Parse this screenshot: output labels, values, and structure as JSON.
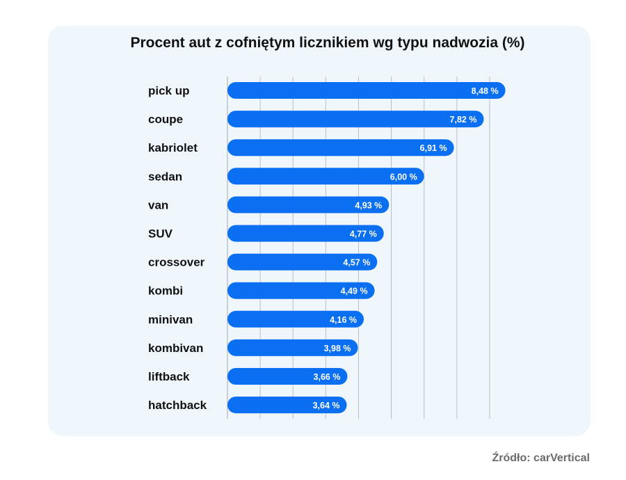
{
  "chart_data": {
    "type": "bar",
    "orientation": "horizontal",
    "title": "Procent aut z cofniętym licznikiem wg typu nadwozia (%)",
    "categories": [
      "pick up",
      "coupe",
      "kabriolet",
      "sedan",
      "van",
      "SUV",
      "crossover",
      "kombi",
      "minivan",
      "kombivan",
      "liftback",
      "hatchback"
    ],
    "values": [
      8.48,
      7.82,
      6.91,
      6.0,
      4.93,
      4.77,
      4.57,
      4.49,
      4.16,
      3.98,
      3.66,
      3.64
    ],
    "value_labels": [
      "8,48 %",
      "7,82 %",
      "6,91 %",
      "6,00 %",
      "4,93 %",
      "4,77 %",
      "4,57 %",
      "4,49 %",
      "4,16 %",
      "3,98 %",
      "3,66 %",
      "3,64 %"
    ],
    "xlim": [
      0,
      9
    ],
    "grid": true,
    "bar_color": "#0a6ff0",
    "grid_color": "#b7bfc8"
  },
  "source_text": "Źródło: carVertical"
}
